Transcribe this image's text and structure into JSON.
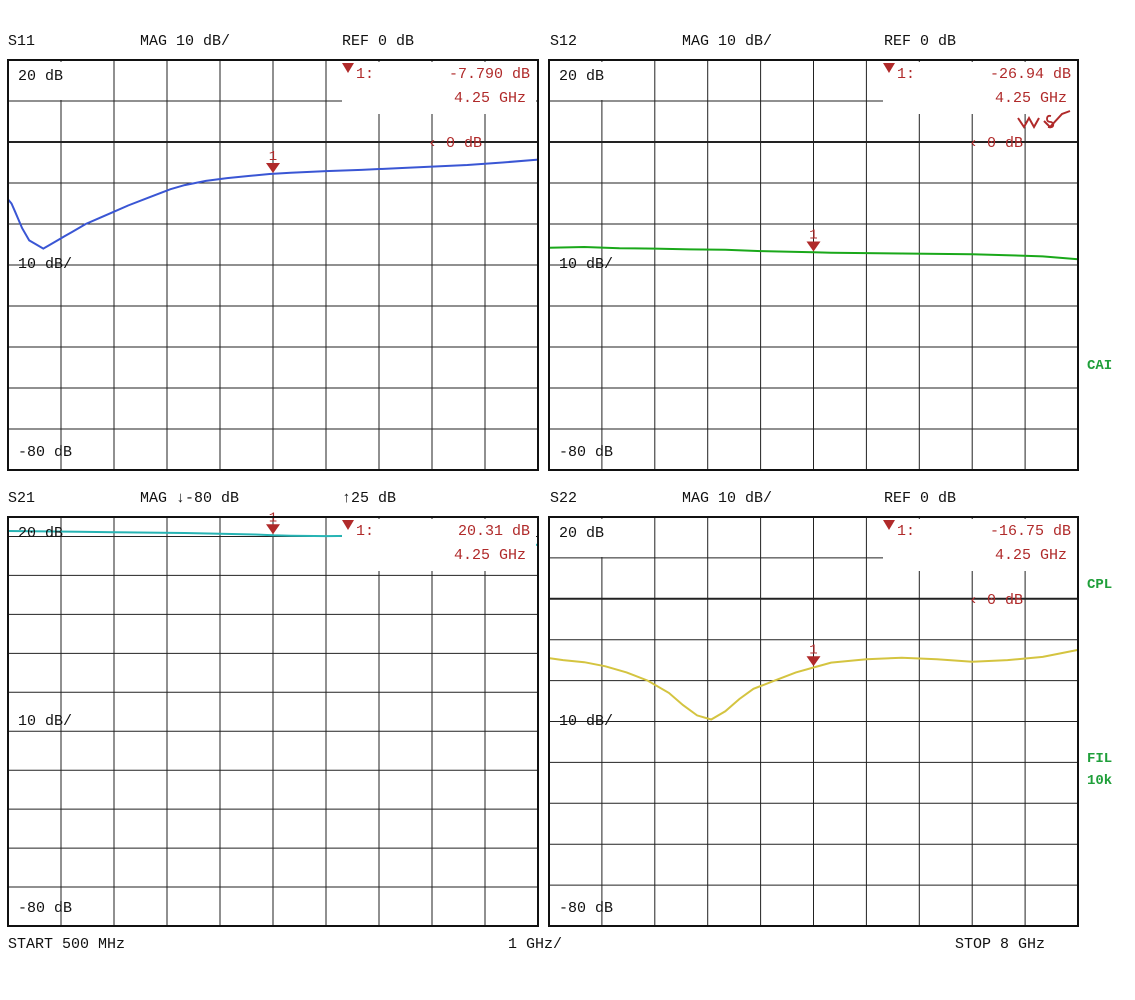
{
  "colors": {
    "s11": "#3a56d4",
    "s12": "#1aa81a",
    "s21": "#27b4b4",
    "s22": "#d4c440",
    "marker": "#b02a2a",
    "side_label": "#1f9f3a"
  },
  "chart_data": [
    {
      "type": "line",
      "header": {
        "param": "S11",
        "scale": "MAG 10 dB/",
        "ref": "REF 0 dB"
      },
      "labels": {
        "top": "20 dB",
        "mid": "10 dB/",
        "bottom": "-80 dB"
      },
      "ylim": [
        -80,
        20
      ],
      "xlim": [
        0.5,
        8
      ],
      "grid": true,
      "ref_line": {
        "value": 0,
        "label": "0 dB"
      },
      "marker": {
        "number": "1",
        "index_label": "1:",
        "value": "-7.790 dB",
        "freq": "4.25 GHz",
        "x": 4.25,
        "y": -7.79
      },
      "series": [
        {
          "x": [
            0.5,
            0.55,
            0.6,
            0.65,
            0.7,
            0.8,
            0.9,
            1.0,
            1.1,
            1.2,
            1.3,
            1.4,
            1.5,
            1.6,
            1.8,
            2.0,
            2.2,
            2.5,
            2.8,
            3.0,
            3.3,
            3.6,
            3.9,
            4.2,
            4.5,
            5.0,
            5.5,
            6.0,
            6.5,
            7.0,
            7.5,
            8.0
          ],
          "y": [
            -14,
            -15,
            -17,
            -19,
            -21,
            -24,
            -25,
            -26,
            -25,
            -24,
            -23,
            -22,
            -21,
            -20,
            -18.5,
            -17,
            -15.5,
            -13.5,
            -11.5,
            -10.5,
            -9.5,
            -8.8,
            -8.3,
            -7.8,
            -7.5,
            -7.1,
            -6.8,
            -6.4,
            -6.0,
            -5.6,
            -5.0,
            -4.3
          ]
        }
      ]
    },
    {
      "type": "line",
      "header": {
        "param": "S12",
        "scale": "MAG 10 dB/",
        "ref": "REF 0 dB"
      },
      "labels": {
        "top": "20 dB",
        "mid": "10 dB/",
        "bottom": "-80 dB"
      },
      "ylim": [
        -80,
        20
      ],
      "xlim": [
        0.5,
        8
      ],
      "grid": true,
      "ref_line": {
        "value": 0,
        "label": "0 dB"
      },
      "marker": {
        "number": "1",
        "index_label": "1:",
        "value": "-26.94 dB",
        "freq": "4.25 GHz",
        "x": 4.25,
        "y": -26.94
      },
      "series": [
        {
          "x": [
            0.5,
            1.0,
            1.5,
            2.0,
            2.5,
            3.0,
            3.5,
            4.0,
            4.25,
            4.5,
            5.0,
            5.5,
            6.0,
            6.5,
            7.0,
            7.5,
            8.0
          ],
          "y": [
            -25.8,
            -25.6,
            -25.9,
            -26.0,
            -26.2,
            -26.3,
            -26.6,
            -26.8,
            -26.9,
            -27.0,
            -27.1,
            -27.2,
            -27.3,
            -27.4,
            -27.6,
            -27.9,
            -28.6
          ]
        }
      ]
    },
    {
      "type": "line",
      "header": {
        "param": "S21",
        "scale": "MAG ↓-80 dB",
        "ref": "↑25 dB"
      },
      "labels": {
        "top": "20 dB",
        "mid": "10 dB/",
        "bottom": "-80 dB"
      },
      "ylim": [
        -80,
        25
      ],
      "xlim": [
        0.5,
        8
      ],
      "grid": true,
      "marker": {
        "number": "1",
        "index_label": "1:",
        "value": "20.31 dB",
        "freq": "4.25 GHz",
        "x": 4.25,
        "y": 20.31
      },
      "series": [
        {
          "x": [
            0.5,
            1.0,
            1.5,
            2.0,
            2.5,
            3.0,
            3.5,
            4.0,
            4.25,
            4.5,
            5.0,
            5.5,
            6.0,
            6.5,
            7.0,
            7.5,
            8.0
          ],
          "y": [
            21.4,
            21.3,
            21.2,
            21.1,
            21.0,
            20.9,
            20.7,
            20.5,
            20.3,
            20.2,
            20.1,
            20.2,
            20.3,
            20.0,
            19.7,
            19.0,
            17.8
          ]
        }
      ]
    },
    {
      "type": "line",
      "header": {
        "param": "S22",
        "scale": "MAG 10 dB/",
        "ref": "REF 0 dB"
      },
      "labels": {
        "top": "20 dB",
        "mid": "10 dB/",
        "bottom": "-80 dB"
      },
      "ylim": [
        -80,
        20
      ],
      "xlim": [
        0.5,
        8
      ],
      "grid": true,
      "ref_line": {
        "value": 0,
        "label": "0 dB"
      },
      "marker": {
        "number": "1",
        "index_label": "1:",
        "value": "-16.75 dB",
        "freq": "4.25 GHz",
        "x": 4.25,
        "y": -16.75
      },
      "series": [
        {
          "x": [
            0.5,
            0.7,
            1.0,
            1.3,
            1.6,
            1.9,
            2.2,
            2.4,
            2.6,
            2.8,
            3.0,
            3.2,
            3.4,
            3.7,
            4.0,
            4.25,
            4.5,
            5.0,
            5.5,
            6.0,
            6.5,
            7.0,
            7.5,
            8.0
          ],
          "y": [
            -14.5,
            -15,
            -15.5,
            -16.5,
            -18,
            -20,
            -23,
            -26,
            -28.5,
            -29.5,
            -27.5,
            -24.5,
            -22,
            -20,
            -18,
            -16.8,
            -15.6,
            -14.8,
            -14.4,
            -14.8,
            -15.4,
            -15.0,
            -14.2,
            -12.5
          ]
        }
      ]
    }
  ],
  "footer": {
    "start": "START  500 MHz",
    "span": "1 GHz/",
    "stop": "STOP 8 GHz"
  },
  "side_labels": {
    "cal": "CAI",
    "cpl": "CPL",
    "fil": "FIL",
    "ifbw": "10k"
  }
}
